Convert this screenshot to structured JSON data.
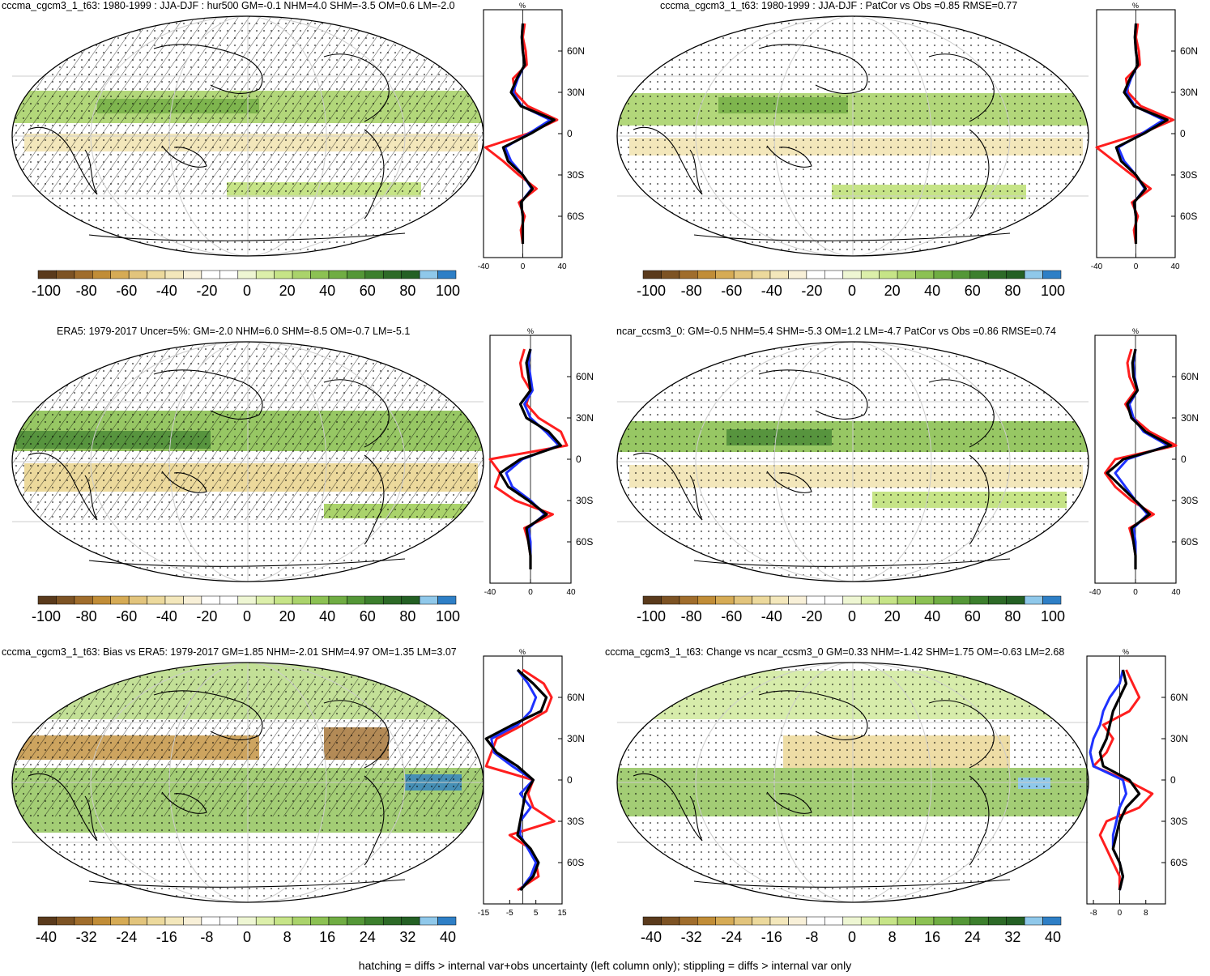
{
  "colors": {
    "negative": [
      "#5a3a1c",
      "#7d5324",
      "#a06d2c",
      "#c18d37",
      "#d6ab55",
      "#e2c47c",
      "#ecd99c",
      "#f3e7bb",
      "#f8f0d8"
    ],
    "neutral": "#ffffff",
    "positive": [
      "#eef6d3",
      "#dcefaa",
      "#c6e487",
      "#aad36b",
      "#8cc153",
      "#70ad43",
      "#549737",
      "#3c7f2d",
      "#2d6a27",
      "#246024"
    ],
    "blue": [
      "#8fc8ea",
      "#2e7fc6"
    ],
    "model_line": "#000000",
    "obs_line": "#ff1e1e",
    "alt_line": "#1e32ff"
  },
  "panels": [
    {
      "title": "cccma_cgcm3_1_t63: 1980-1999 : JJA-DJF : hur500 GM=-0.1 NHM=4.0 SHM=-3.5 OM=0.6 LM=-2.0",
      "hatching": true,
      "colorbar_ticks": [
        "-100",
        "-80",
        "-60",
        "-40",
        "-20",
        "0",
        "20",
        "40",
        "60",
        "80",
        "100"
      ],
      "zonal_unit": "%",
      "zonal_xticks": [
        "-40",
        "0",
        "40"
      ],
      "zonal_lat_labels": [
        "60N",
        "30N",
        "0",
        "30S",
        "60S"
      ],
      "zonal_xlim": [
        -40,
        40
      ],
      "zonal_mean": {
        "lat": [
          80,
          70,
          60,
          50,
          40,
          30,
          20,
          10,
          0,
          -10,
          -20,
          -30,
          -40,
          -50,
          -60,
          -70,
          -80
        ],
        "model": [
          0,
          -1,
          0,
          2,
          -6,
          -12,
          -2,
          32,
          8,
          -20,
          -15,
          0,
          10,
          -2,
          0,
          0,
          0
        ],
        "obs": [
          2,
          0,
          3,
          4,
          -10,
          -8,
          5,
          35,
          5,
          -38,
          -20,
          -4,
          14,
          -4,
          2,
          -2,
          0
        ],
        "alt": [
          0,
          -1,
          0,
          2,
          -5,
          -10,
          -1,
          28,
          6,
          -18,
          -12,
          0,
          9,
          -2,
          0,
          0,
          0
        ]
      }
    },
    {
      "title": "cccma_cgcm3_1_t63: 1980-1999 : JJA-DJF : PatCor vs Obs =0.85 RMSE=0.77",
      "hatching": false,
      "colorbar_ticks": [
        "-100",
        "-80",
        "-60",
        "-40",
        "-20",
        "0",
        "20",
        "40",
        "60",
        "80",
        "100"
      ],
      "zonal_unit": "%",
      "zonal_xticks": [
        "-40",
        "0",
        "40"
      ],
      "zonal_lat_labels": [
        "60N",
        "30N",
        "0",
        "30S",
        "60S"
      ],
      "zonal_xlim": [
        -40,
        40
      ],
      "zonal_mean": {
        "lat": [
          80,
          70,
          60,
          50,
          40,
          30,
          20,
          10,
          0,
          -10,
          -20,
          -30,
          -40,
          -50,
          -60,
          -70,
          -80
        ],
        "model": [
          0,
          -1,
          0,
          2,
          -6,
          -12,
          -2,
          32,
          8,
          -20,
          -15,
          0,
          10,
          -2,
          0,
          0,
          0
        ],
        "obs": [
          2,
          0,
          3,
          4,
          -10,
          -8,
          5,
          38,
          5,
          -40,
          -22,
          -4,
          15,
          -4,
          2,
          -2,
          0
        ],
        "alt": [
          0,
          -1,
          0,
          2,
          -5,
          -10,
          -1,
          28,
          6,
          -18,
          -12,
          0,
          9,
          -2,
          0,
          0,
          0
        ]
      }
    },
    {
      "title": "ERA5: 1979-2017 Uncer=5%: GM=-2.0 NHM=6.0 SHM=-8.5 OM=-0.7 LM=-5.1",
      "hatching": true,
      "colorbar_ticks": [
        "-100",
        "-80",
        "-60",
        "-40",
        "-20",
        "0",
        "20",
        "40",
        "60",
        "80",
        "100"
      ],
      "zonal_unit": "%",
      "zonal_xticks": [
        "-40",
        "0",
        "40"
      ],
      "zonal_lat_labels": [
        "60N",
        "30N",
        "0",
        "30S",
        "60S"
      ],
      "zonal_xlim": [
        -40,
        40
      ],
      "zonal_mean": {
        "lat": [
          80,
          70,
          60,
          50,
          40,
          30,
          20,
          10,
          0,
          -10,
          -20,
          -30,
          -40,
          -50,
          -60,
          -70,
          -80
        ],
        "model": [
          0,
          -4,
          -2,
          0,
          -10,
          -4,
          18,
          30,
          -10,
          -30,
          -22,
          -2,
          16,
          -4,
          -2,
          0,
          0
        ],
        "obs": [
          -6,
          -10,
          -8,
          0,
          -4,
          8,
          30,
          36,
          -40,
          -30,
          -35,
          -15,
          22,
          -6,
          -2,
          0,
          0
        ],
        "alt": [
          0,
          -2,
          0,
          2,
          -6,
          0,
          15,
          28,
          -8,
          -24,
          -18,
          0,
          14,
          -2,
          0,
          0,
          0
        ]
      }
    },
    {
      "title": "ncar_ccsm3_0: GM=-0.5 NHM=5.4 SHM=-5.3 OM=1.2 LM=-4.7 PatCor vs Obs =0.86 RMSE=0.74",
      "hatching": false,
      "colorbar_ticks": [
        "-100",
        "-80",
        "-60",
        "-40",
        "-20",
        "0",
        "20",
        "40",
        "60",
        "80",
        "100"
      ],
      "zonal_unit": "%",
      "zonal_xticks": [
        "-40",
        "0",
        "40"
      ],
      "zonal_lat_labels": [
        "60N",
        "30N",
        "0",
        "30S",
        "60S"
      ],
      "zonal_xlim": [
        -40,
        40
      ],
      "zonal_mean": {
        "lat": [
          80,
          70,
          60,
          50,
          40,
          30,
          20,
          10,
          0,
          -10,
          -20,
          -30,
          -40,
          -50,
          -60,
          -70,
          -80
        ],
        "model": [
          0,
          -3,
          -2,
          2,
          -8,
          -4,
          10,
          35,
          -12,
          -28,
          -14,
          0,
          14,
          -4,
          -2,
          0,
          0
        ],
        "obs": [
          -4,
          -8,
          -6,
          0,
          -10,
          -2,
          14,
          40,
          -20,
          -30,
          -20,
          -4,
          18,
          -6,
          -2,
          0,
          0
        ],
        "alt": [
          0,
          -2,
          -1,
          2,
          -6,
          -2,
          8,
          32,
          -8,
          -20,
          -10,
          0,
          12,
          -2,
          0,
          0,
          0
        ]
      }
    },
    {
      "title": "cccma_cgcm3_1_t63: Bias vs ERA5: 1979-2017 GM=1.85 NHM=-2.01 SHM=4.97 OM=1.35 LM=3.07",
      "hatching": true,
      "colorbar_ticks": [
        "-40",
        "-32",
        "-24",
        "-16",
        "-8",
        "0",
        "8",
        "16",
        "24",
        "32",
        "40"
      ],
      "zonal_unit": "%",
      "zonal_xticks": [
        "-15",
        "-5",
        "5",
        "15"
      ],
      "zonal_lat_labels": [
        "60N",
        "30N",
        "0",
        "30S",
        "60S"
      ],
      "zonal_xlim": [
        -15,
        15
      ],
      "zonal_mean": {
        "lat": [
          80,
          70,
          60,
          50,
          40,
          30,
          20,
          10,
          0,
          -10,
          -20,
          -30,
          -40,
          -50,
          -60,
          -70,
          -80
        ],
        "model": [
          -2,
          4,
          9,
          7,
          -4,
          -14,
          -10,
          -2,
          4,
          1,
          0,
          -1,
          -2,
          3,
          6,
          4,
          -1
        ],
        "obs": [
          0,
          8,
          11,
          9,
          0,
          -10,
          -12,
          -14,
          4,
          2,
          4,
          12,
          -5,
          3,
          5,
          6,
          -2
        ],
        "alt": [
          -2,
          2,
          5,
          3,
          -2,
          -12,
          -11,
          -4,
          4,
          -1,
          3,
          -1,
          -1,
          2,
          5,
          3,
          -1
        ]
      }
    },
    {
      "title": "cccma_cgcm3_1_t63: Change vs ncar_ccsm3_0 GM=0.33 NHM=-1.42 SHM=1.75 OM=-0.63 LM=2.68",
      "hatching": false,
      "colorbar_ticks": [
        "-40",
        "-32",
        "-24",
        "-16",
        "-8",
        "0",
        "8",
        "16",
        "24",
        "32",
        "40"
      ],
      "zonal_unit": "%",
      "zonal_xticks": [
        "-8",
        "0",
        "8"
      ],
      "zonal_lat_labels": [
        "60N",
        "30N",
        "0",
        "30S",
        "60S"
      ],
      "zonal_xlim": [
        -10,
        14
      ],
      "zonal_mean": {
        "lat": [
          80,
          70,
          60,
          50,
          40,
          30,
          20,
          10,
          0,
          -10,
          -20,
          -30,
          -40,
          -50,
          -60,
          -70,
          -80
        ],
        "model": [
          1,
          2,
          0,
          -2,
          -3,
          -4,
          -6,
          -5,
          3,
          6,
          2,
          0,
          -1,
          -2,
          0,
          1,
          0
        ],
        "obs": [
          2,
          4,
          6,
          3,
          -5,
          -2,
          -4,
          -8,
          2,
          10,
          6,
          -4,
          -6,
          -4,
          -2,
          0,
          0
        ],
        "alt": [
          1,
          0,
          -3,
          -5,
          -6,
          -8,
          -9,
          -8,
          1,
          2,
          0,
          -1,
          -2,
          -2,
          0,
          1,
          0
        ]
      }
    }
  ],
  "footer": "hatching = diffs > internal var+obs uncertainty (left column only); stippling = diffs > internal var only"
}
